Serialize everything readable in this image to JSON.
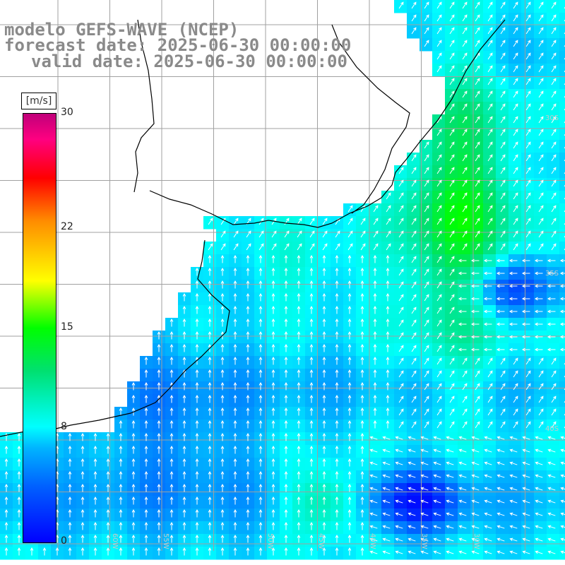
{
  "title": {
    "line1": "modelo GEFS-WAVE (NCEP)",
    "line2": "forecast date: 2025-06-30 00:00:00",
    "line3": "valid date: 2025-06-30 00:00:00"
  },
  "colorbar": {
    "unit": "[m/s]",
    "ticks": [
      "30",
      "22",
      "15",
      "8",
      "0"
    ],
    "tick_values": [
      30,
      22,
      15,
      8,
      0
    ],
    "min": 0,
    "max": 30
  },
  "map": {
    "lon_labels": [
      "60W",
      "55W",
      "50W",
      "45W",
      "40W",
      "35W",
      "30W"
    ],
    "lat_labels": [
      "30S",
      "35S",
      "40S"
    ],
    "colors": {
      "land": "#ffffff",
      "coast": "#000000",
      "grid": "#a0a0a0",
      "arrows": "#ffffff",
      "label": "#c8c8c8"
    }
  }
}
